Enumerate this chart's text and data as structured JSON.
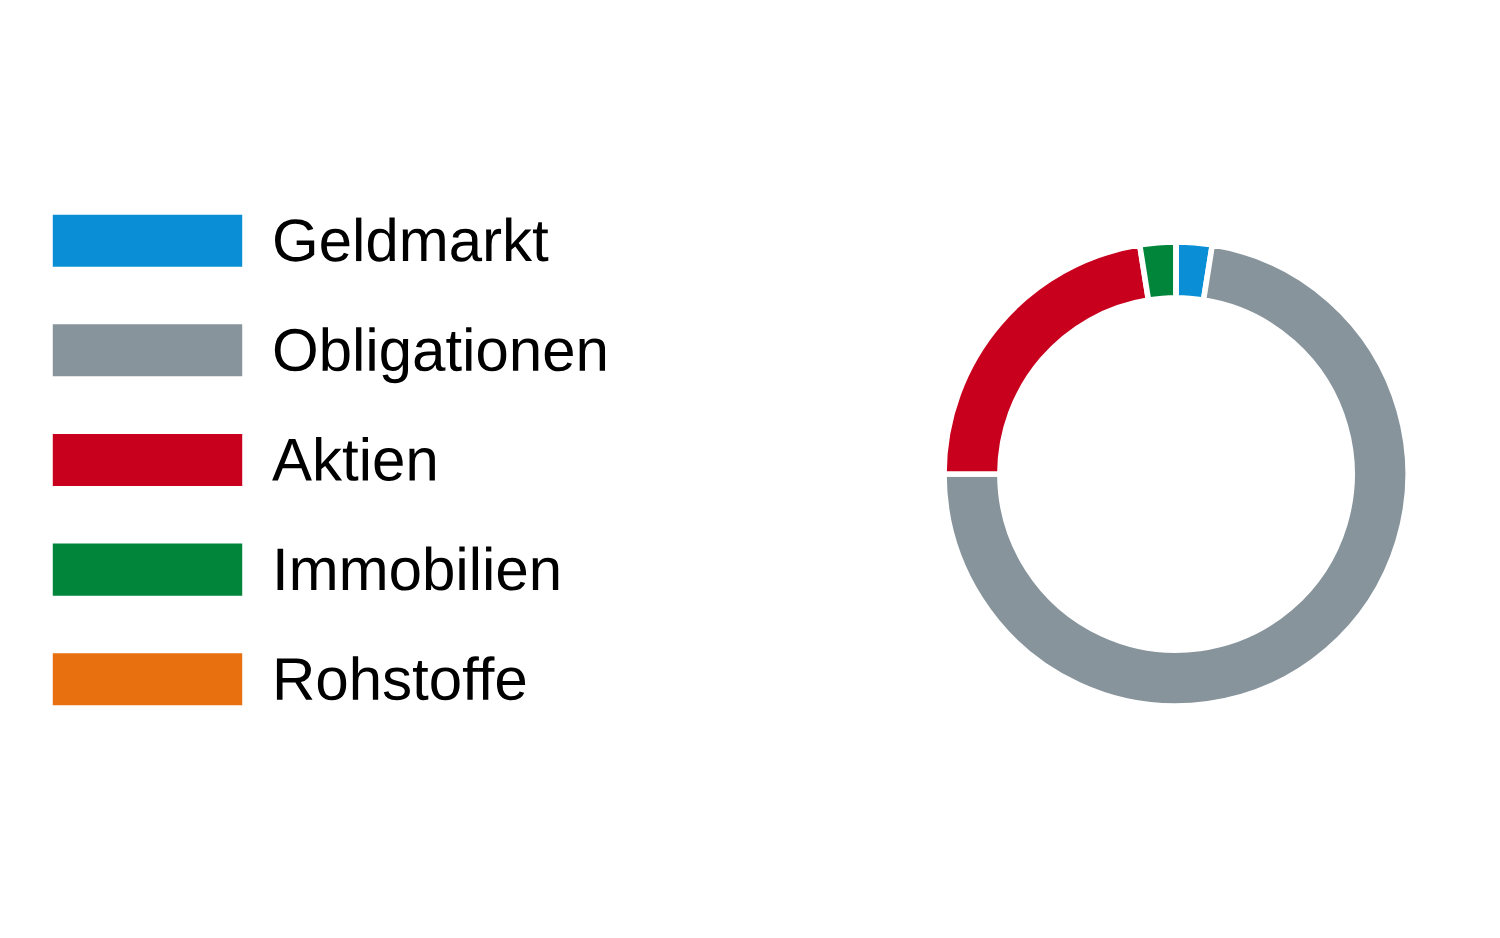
{
  "chart_data": {
    "type": "donut",
    "categories": [
      "Geldmarkt",
      "Obligationen",
      "Aktien",
      "Immobilien",
      "Rohstoffe"
    ],
    "values": [
      2.5,
      72.5,
      22.5,
      2.5,
      0
    ],
    "colors": [
      "#0a8fd6",
      "#87949c",
      "#c8001e",
      "#00853a",
      "#e8700f"
    ],
    "legend": "left"
  }
}
